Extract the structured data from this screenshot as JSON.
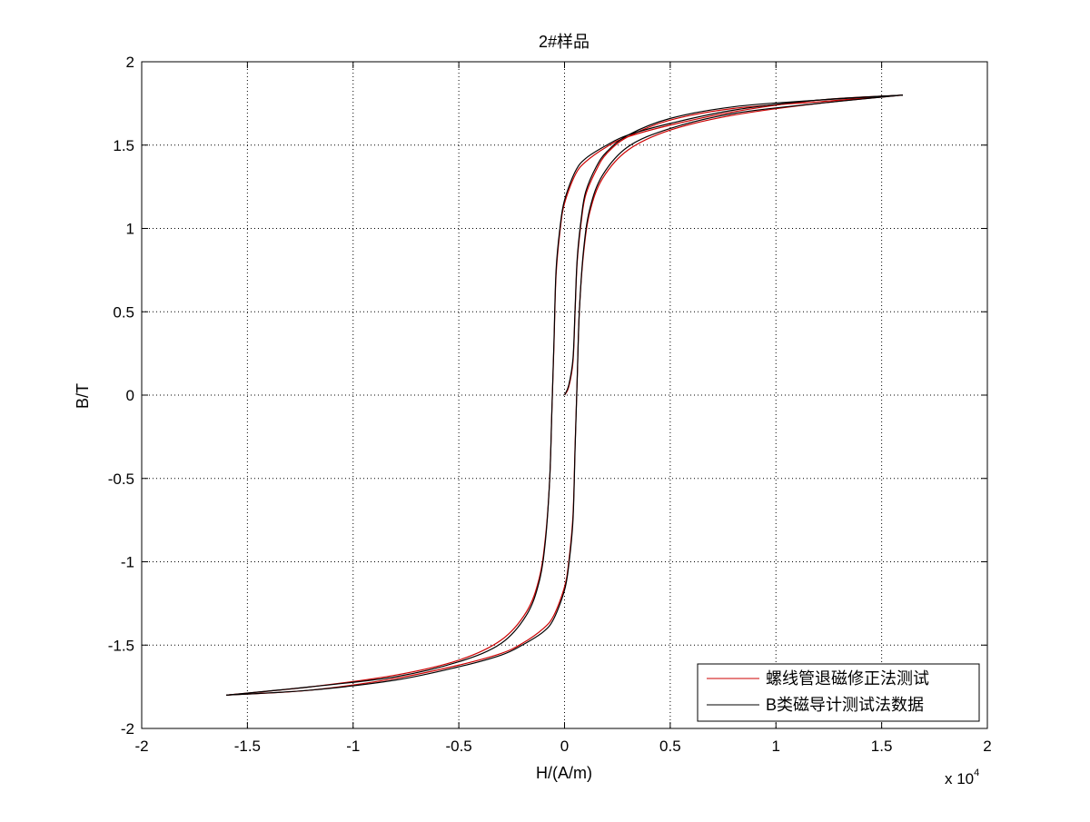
{
  "chart_data": {
    "type": "line",
    "title": "2#样品",
    "xlabel": "H/(A/m)",
    "ylabel": "B/T",
    "x_multiplier_label": "x 10",
    "x_multiplier_exponent": "4",
    "xlim": [
      -2,
      2
    ],
    "ylim": [
      -2,
      2
    ],
    "xticks": [
      -2,
      -1.5,
      -1,
      -0.5,
      0,
      0.5,
      1,
      1.5,
      2
    ],
    "xtick_labels": [
      "-2",
      "-1.5",
      "-1",
      "-0.5",
      "0",
      "0.5",
      "1",
      "1.5",
      "2"
    ],
    "yticks": [
      -2,
      -1.5,
      -1,
      -0.5,
      0,
      0.5,
      1,
      1.5,
      2
    ],
    "ytick_labels": [
      "-2",
      "-1.5",
      "-1",
      "-0.5",
      "0",
      "0.5",
      "1",
      "1.5",
      "2"
    ],
    "grid": true,
    "legend_position": "bottom-right",
    "series": [
      {
        "name": "螺线管退磁修正法测试",
        "color": "#cc0000",
        "initial": {
          "x": [
            0,
            0.02,
            0.04,
            0.05,
            0.06,
            0.08,
            0.1,
            0.15,
            0.2,
            0.3,
            0.5,
            0.8,
            1.2,
            1.6
          ],
          "y": [
            0,
            0.05,
            0.2,
            0.5,
            0.8,
            1.05,
            1.2,
            1.35,
            1.45,
            1.55,
            1.65,
            1.72,
            1.76,
            1.8
          ]
        },
        "descending": {
          "x": [
            1.6,
            1.2,
            0.8,
            0.5,
            0.3,
            0.2,
            0.1,
            0.05,
            0,
            -0.02,
            -0.04,
            -0.05,
            -0.06,
            -0.07,
            -0.09,
            -0.12,
            -0.18,
            -0.3,
            -0.5,
            -0.8,
            -1.2,
            -1.6
          ],
          "y": [
            1.8,
            1.77,
            1.7,
            1.62,
            1.55,
            1.49,
            1.4,
            1.32,
            1.15,
            1.0,
            0.72,
            0.3,
            -0.1,
            -0.5,
            -0.85,
            -1.1,
            -1.3,
            -1.47,
            -1.59,
            -1.68,
            -1.75,
            -1.8
          ]
        },
        "ascending": {
          "x": [
            -1.6,
            -1.2,
            -0.8,
            -0.5,
            -0.3,
            -0.2,
            -0.1,
            -0.05,
            0,
            0.02,
            0.04,
            0.05,
            0.06,
            0.07,
            0.09,
            0.12,
            0.18,
            0.3,
            0.5,
            0.8,
            1.2,
            1.6
          ],
          "y": [
            -1.8,
            -1.77,
            -1.7,
            -1.62,
            -1.55,
            -1.49,
            -1.4,
            -1.32,
            -1.15,
            -1.0,
            -0.72,
            -0.3,
            0.1,
            0.5,
            0.85,
            1.1,
            1.3,
            1.47,
            1.59,
            1.68,
            1.75,
            1.8
          ]
        }
      },
      {
        "name": "B类磁导计测试法数据",
        "color": "#000000",
        "initial": {
          "x": [
            0,
            0.02,
            0.04,
            0.05,
            0.06,
            0.08,
            0.1,
            0.15,
            0.2,
            0.3,
            0.5,
            0.8,
            1.2,
            1.6
          ],
          "y": [
            0,
            0.06,
            0.22,
            0.52,
            0.82,
            1.07,
            1.22,
            1.37,
            1.46,
            1.56,
            1.66,
            1.73,
            1.77,
            1.8
          ]
        },
        "descending": {
          "x": [
            1.6,
            1.2,
            0.8,
            0.5,
            0.3,
            0.2,
            0.1,
            0.05,
            0,
            -0.02,
            -0.04,
            -0.05,
            -0.06,
            -0.07,
            -0.09,
            -0.12,
            -0.18,
            -0.3,
            -0.5,
            -0.8,
            -1.2,
            -1.6
          ],
          "y": [
            1.8,
            1.77,
            1.71,
            1.63,
            1.56,
            1.5,
            1.42,
            1.34,
            1.17,
            1.02,
            0.75,
            0.32,
            -0.1,
            -0.5,
            -0.87,
            -1.12,
            -1.32,
            -1.49,
            -1.6,
            -1.69,
            -1.75,
            -1.8
          ]
        },
        "ascending": {
          "x": [
            -1.6,
            -1.2,
            -0.8,
            -0.5,
            -0.3,
            -0.2,
            -0.1,
            -0.05,
            0,
            0.02,
            0.04,
            0.05,
            0.06,
            0.07,
            0.09,
            0.12,
            0.18,
            0.3,
            0.5,
            0.8,
            1.2,
            1.6
          ],
          "y": [
            -1.8,
            -1.77,
            -1.71,
            -1.63,
            -1.56,
            -1.5,
            -1.42,
            -1.34,
            -1.17,
            -1.02,
            -0.75,
            -0.32,
            0.1,
            0.5,
            0.87,
            1.12,
            1.32,
            1.49,
            1.6,
            1.69,
            1.75,
            1.8
          ]
        }
      }
    ]
  }
}
